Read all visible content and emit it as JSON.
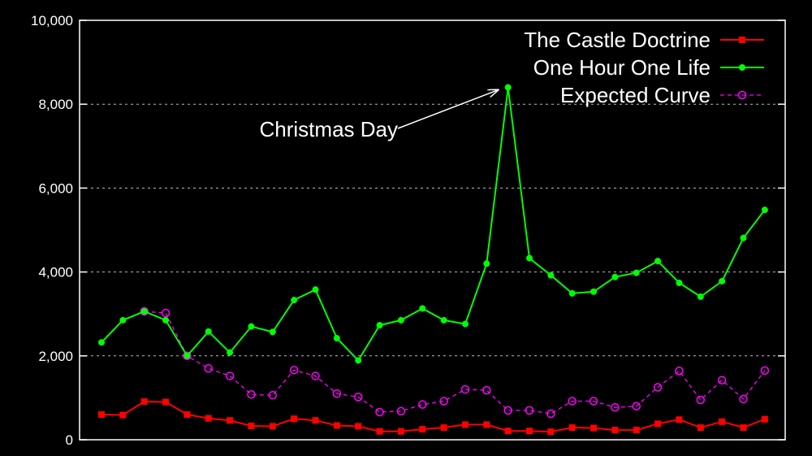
{
  "chart_data": {
    "type": "line",
    "title": "",
    "xlabel": "",
    "ylabel": "",
    "ylim": [
      0,
      10000
    ],
    "yticks": [
      0,
      2000,
      4000,
      6000,
      8000,
      10000
    ],
    "ytick_labels": [
      "0",
      "2,000",
      "4,000",
      "6,000",
      "8,000",
      "10,000"
    ],
    "grid": "horizontal dashed",
    "legend_position": "top-right",
    "x": [
      1,
      2,
      3,
      4,
      5,
      6,
      7,
      8,
      9,
      10,
      11,
      12,
      13,
      14,
      15,
      16,
      17,
      18,
      19,
      20,
      21,
      22,
      23,
      24,
      25,
      26,
      27,
      28,
      29,
      30,
      31,
      32
    ],
    "series": [
      {
        "name": "The Castle Doctrine",
        "color": "#ff0000",
        "marker": "square",
        "line": "solid",
        "values": [
          600,
          590,
          910,
          900,
          600,
          510,
          460,
          330,
          320,
          500,
          460,
          340,
          320,
          200,
          200,
          250,
          290,
          360,
          360,
          210,
          210,
          190,
          290,
          280,
          230,
          230,
          380,
          480,
          290,
          430,
          290,
          490
        ]
      },
      {
        "name": "One Hour One Life",
        "color": "#00ff00",
        "marker": "filled-circle",
        "line": "solid",
        "values": [
          2320,
          2850,
          3060,
          2850,
          2000,
          2580,
          2080,
          2700,
          2570,
          3330,
          3580,
          2420,
          1890,
          2730,
          2850,
          3130,
          2850,
          2760,
          4200,
          8400,
          4330,
          3920,
          3490,
          3530,
          3880,
          3980,
          4260,
          3740,
          3410,
          3780,
          4810,
          5480
        ]
      },
      {
        "name": "Expected Curve",
        "color": "#ff00ff",
        "marker": "open-circle",
        "line": "dashed",
        "values": [
          null,
          null,
          3060,
          3020,
          2000,
          1700,
          1520,
          1080,
          1060,
          1660,
          1520,
          1100,
          1020,
          660,
          680,
          840,
          920,
          1200,
          1180,
          700,
          700,
          620,
          920,
          920,
          770,
          800,
          1250,
          1640,
          950,
          1420,
          970,
          1650
        ]
      }
    ],
    "annotations": [
      {
        "text": "Christmas Day",
        "x": 20,
        "y": 8400
      }
    ]
  }
}
